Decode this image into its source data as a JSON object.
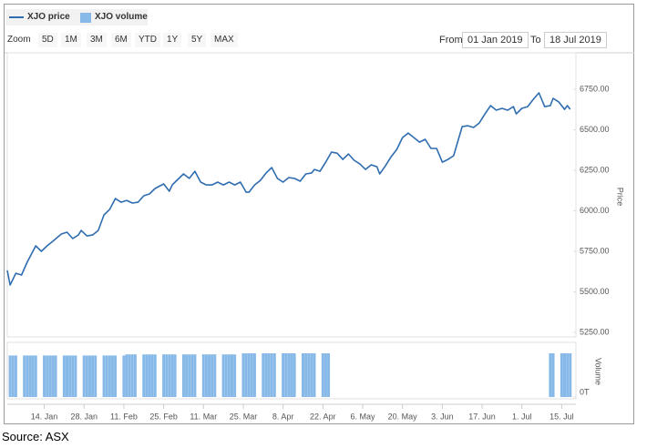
{
  "controls": {
    "zoom_label": "Zoom",
    "zoom_buttons": [
      "5D",
      "1M",
      "3M",
      "6M",
      "YTD",
      "1Y",
      "5Y",
      "MAX"
    ],
    "from_label": "From",
    "from": "01 Jan 2019",
    "to_label": "To",
    "to": "18 Jul 2019"
  },
  "caption": "Source: ASX",
  "chart_data": {
    "type": "line",
    "y_label": "Price",
    "y2_label": "Volume",
    "xlim": [
      0,
      200
    ],
    "xticks": [
      {
        "value": 13,
        "label": "14. Jan"
      },
      {
        "value": 27,
        "label": "28. Jan"
      },
      {
        "value": 41,
        "label": "11. Feb"
      },
      {
        "value": 55,
        "label": "25. Feb"
      },
      {
        "value": 69,
        "label": "11. Mar"
      },
      {
        "value": 83,
        "label": "25. Mar"
      },
      {
        "value": 97,
        "label": "8. Apr"
      },
      {
        "value": 111,
        "label": "22. Apr"
      },
      {
        "value": 125,
        "label": "6. May"
      },
      {
        "value": 139,
        "label": "20. May"
      },
      {
        "value": 153,
        "label": "3. Jun"
      },
      {
        "value": 167,
        "label": "17. Jun"
      },
      {
        "value": 181,
        "label": "1. Jul"
      },
      {
        "value": 195,
        "label": "15. Jul"
      }
    ],
    "ylim": [
      5222,
      6975
    ],
    "yticks": [
      {
        "value": 5250,
        "label": "5250.00"
      },
      {
        "value": 5500,
        "label": "5500.00"
      },
      {
        "value": 5750,
        "label": "5750.00"
      },
      {
        "value": 6000,
        "label": "6000.00"
      },
      {
        "value": 6250,
        "label": "6250.00"
      },
      {
        "value": 6500,
        "label": "6500.00"
      },
      {
        "value": 6750,
        "label": "6750.00"
      }
    ],
    "y2lim": [
      0,
      1
    ],
    "y2ticks": [
      {
        "value": 0,
        "label": "0T"
      }
    ],
    "grid": false,
    "series": [
      {
        "name": "XJO price",
        "color": "#2f6db0",
        "x": [
          0,
          1,
          3,
          5,
          7,
          9,
          10,
          12,
          14,
          16,
          19,
          21,
          23,
          25,
          26,
          28,
          30,
          32,
          34,
          36,
          38,
          40,
          42,
          44,
          46,
          48,
          50,
          52,
          55,
          57,
          58,
          60,
          62,
          64,
          66,
          68,
          70,
          72,
          74,
          76,
          78,
          80,
          82,
          84,
          85,
          87,
          89,
          91,
          93,
          95,
          97,
          99,
          101,
          103,
          105,
          107,
          108,
          110,
          112,
          114,
          116,
          118,
          120,
          122,
          124,
          126,
          128,
          130,
          131,
          133,
          135,
          137,
          139,
          141,
          143,
          145,
          147,
          149,
          151,
          153,
          155,
          157,
          158,
          160,
          162,
          164,
          166,
          168,
          170,
          172,
          174,
          176,
          178,
          179,
          181,
          183,
          185,
          187,
          189,
          191,
          192,
          194,
          196,
          197,
          198
        ],
        "values": [
          5632,
          5542,
          5615,
          5604,
          5683,
          5750,
          5784,
          5750,
          5784,
          5812,
          5857,
          5868,
          5829,
          5851,
          5879,
          5845,
          5851,
          5879,
          5975,
          6008,
          6076,
          6053,
          6064,
          6048,
          6053,
          6093,
          6104,
          6138,
          6166,
          6121,
          6160,
          6194,
          6228,
          6200,
          6244,
          6177,
          6160,
          6160,
          6177,
          6160,
          6177,
          6160,
          6177,
          6115,
          6115,
          6160,
          6188,
          6233,
          6267,
          6200,
          6177,
          6205,
          6200,
          6183,
          6228,
          6233,
          6255,
          6244,
          6300,
          6362,
          6356,
          6317,
          6351,
          6312,
          6289,
          6255,
          6284,
          6272,
          6228,
          6278,
          6334,
          6379,
          6452,
          6480,
          6452,
          6424,
          6441,
          6385,
          6385,
          6300,
          6317,
          6340,
          6402,
          6520,
          6525,
          6514,
          6542,
          6598,
          6649,
          6621,
          6632,
          6621,
          6643,
          6598,
          6632,
          6643,
          6688,
          6728,
          6643,
          6649,
          6694,
          6671,
          6626,
          6649,
          6626
        ]
      },
      {
        "name": "XJO volume",
        "color": "#86b9e8",
        "axis": "y2",
        "x": [
          1,
          2,
          3,
          6,
          7,
          8,
          9,
          10,
          13,
          14,
          15,
          16,
          17,
          20,
          21,
          22,
          23,
          24,
          27,
          28,
          29,
          30,
          31,
          34,
          35,
          36,
          37,
          38,
          41,
          42,
          43,
          44,
          45,
          48,
          49,
          50,
          51,
          52,
          55,
          56,
          57,
          58,
          59,
          62,
          63,
          64,
          65,
          66,
          69,
          70,
          71,
          72,
          73,
          76,
          77,
          78,
          79,
          80,
          83,
          84,
          85,
          86,
          87,
          90,
          91,
          92,
          93,
          94,
          97,
          98,
          99,
          100,
          101,
          104,
          105,
          106,
          107,
          108,
          111,
          112,
          113,
          191,
          192,
          195,
          196,
          197,
          198
        ],
        "values": [
          0.76,
          0.76,
          0.76,
          0.76,
          0.76,
          0.76,
          0.76,
          0.76,
          0.76,
          0.76,
          0.76,
          0.76,
          0.76,
          0.76,
          0.76,
          0.76,
          0.76,
          0.76,
          0.76,
          0.76,
          0.76,
          0.76,
          0.76,
          0.76,
          0.76,
          0.76,
          0.76,
          0.76,
          0.76,
          0.78,
          0.78,
          0.78,
          0.78,
          0.78,
          0.78,
          0.78,
          0.78,
          0.78,
          0.78,
          0.78,
          0.78,
          0.78,
          0.78,
          0.78,
          0.78,
          0.78,
          0.78,
          0.78,
          0.78,
          0.78,
          0.78,
          0.78,
          0.78,
          0.78,
          0.78,
          0.78,
          0.78,
          0.78,
          0.8,
          0.8,
          0.8,
          0.8,
          0.8,
          0.8,
          0.8,
          0.8,
          0.8,
          0.8,
          0.8,
          0.8,
          0.8,
          0.8,
          0.8,
          0.8,
          0.8,
          0.8,
          0.8,
          0.8,
          0.8,
          0.8,
          0.8,
          0.8,
          0.8,
          0.8,
          0.8,
          0.8,
          0.8
        ]
      }
    ]
  }
}
